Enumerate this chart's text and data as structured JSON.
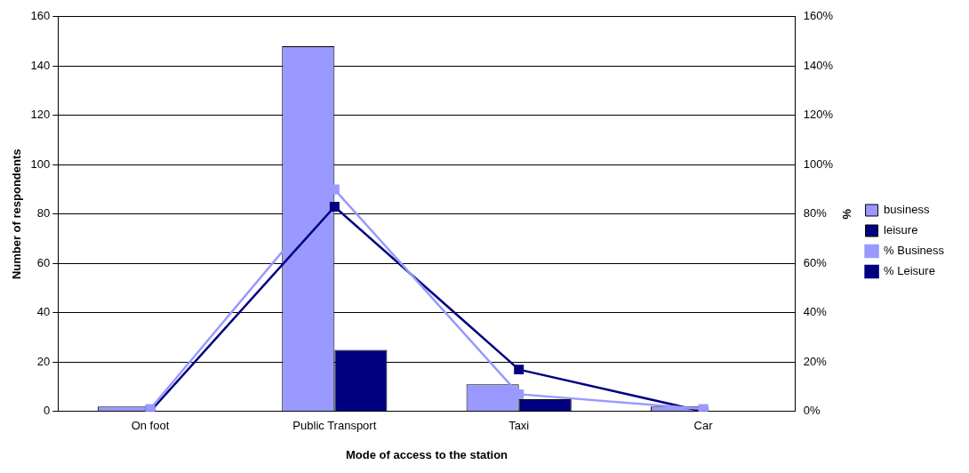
{
  "chart_data": {
    "type": "bar",
    "xlabel": "Mode of access to the station",
    "ylabel": "Number of respondents",
    "y2label": "%",
    "categories": [
      "On foot",
      "Public Transport",
      "Taxi",
      "Car"
    ],
    "series": [
      {
        "name": "business",
        "color": "#9999ff",
        "values": [
          2,
          148,
          11,
          2
        ]
      },
      {
        "name": "leisure",
        "color": "#000080",
        "values": [
          0,
          25,
          5,
          0
        ]
      },
      {
        "name": "% Business",
        "type": "line",
        "axis": "y2",
        "color": "#9999ff",
        "values": [
          1,
          90,
          7,
          1
        ]
      },
      {
        "name": "% Leisure",
        "type": "line",
        "axis": "y2",
        "color": "#000080",
        "values": [
          0,
          83,
          17,
          0
        ]
      }
    ],
    "ylim": [
      0,
      160
    ],
    "yticks": [
      0,
      20,
      40,
      60,
      80,
      100,
      120,
      140,
      160
    ],
    "y2lim": [
      0,
      160
    ],
    "y2ticks": [
      {
        "value": 0,
        "label": "0%"
      },
      {
        "value": 20,
        "label": "20%"
      },
      {
        "value": 40,
        "label": "40%"
      },
      {
        "value": 60,
        "label": "60%"
      },
      {
        "value": 80,
        "label": "80%"
      },
      {
        "value": 100,
        "label": "100%"
      },
      {
        "value": 120,
        "label": "120%"
      },
      {
        "value": 140,
        "label": "140%"
      },
      {
        "value": 160,
        "label": "160%"
      }
    ],
    "grid": "y",
    "legend": "right",
    "marker": "square",
    "line_style": "solid"
  }
}
